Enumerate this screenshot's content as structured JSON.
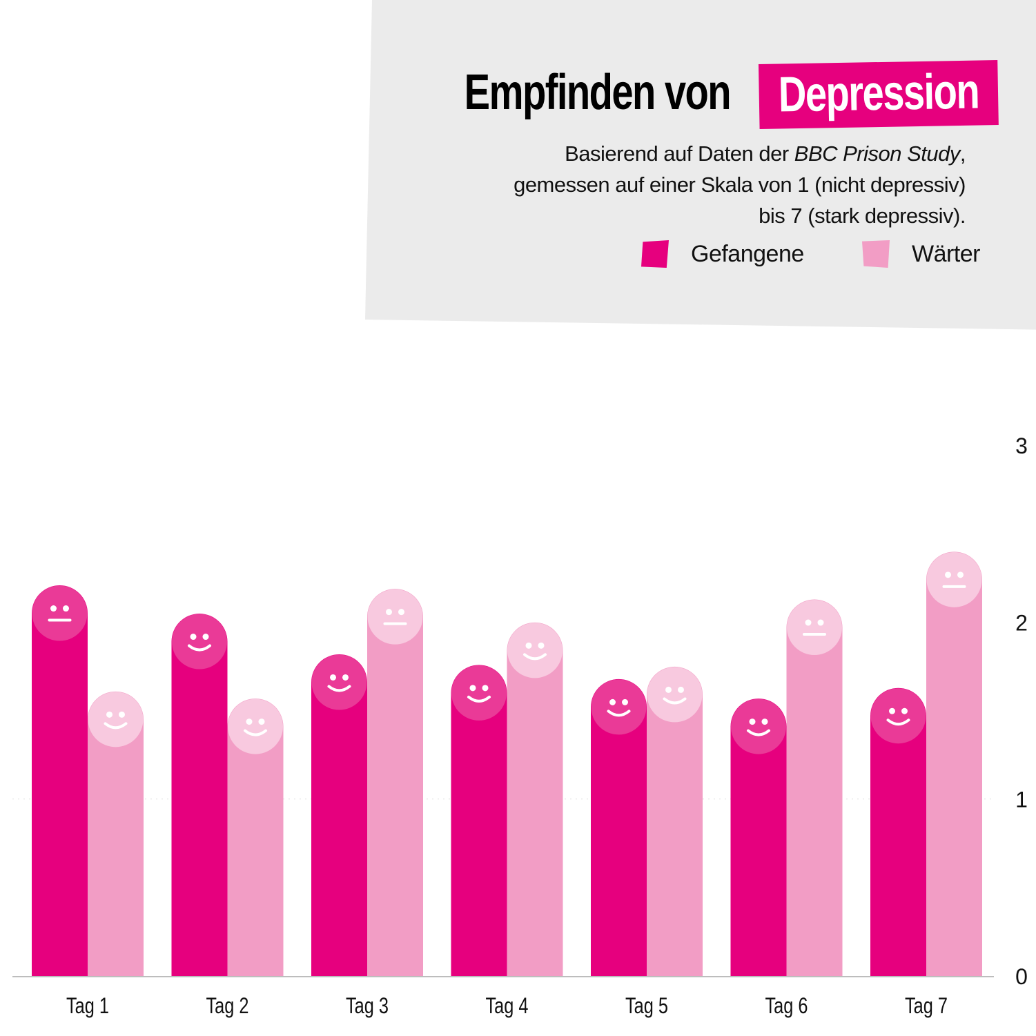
{
  "header": {
    "title_main": "Empfinden von",
    "title_highlight": "Depression",
    "subtitle_part1": "Basierend auf Daten der ",
    "subtitle_italic1": "BBC Prison Study",
    "subtitle_part2": ", gemessen auf einer Skala von 1 (nicht depressiv) bis 7 (stark depressiv)."
  },
  "legend": {
    "gefangene_label": "Gefangene",
    "waerter_label": "Wärter"
  },
  "colors": {
    "gefangene": "#e6007e",
    "gefangene_face": "#ea3a97",
    "waerter": "#f29dc5",
    "waerter_face": "#f8c9df",
    "card_bg": "#ebebeb"
  },
  "chart_data": {
    "type": "bar",
    "categories": [
      "Tag 1",
      "Tag 2",
      "Tag 3",
      "Tag 4",
      "Tag 5",
      "Tag 6",
      "Tag 7"
    ],
    "series": [
      {
        "name": "Gefangene",
        "values": [
          2.05,
          1.89,
          1.66,
          1.6,
          1.52,
          1.41,
          1.47
        ],
        "faces": [
          "neutral-icon",
          "smile-icon",
          "smile-icon",
          "smile-icon",
          "smile-icon",
          "smile-icon",
          "smile-icon"
        ]
      },
      {
        "name": "Wärter",
        "values": [
          1.45,
          1.41,
          2.03,
          1.84,
          1.59,
          1.97,
          2.24
        ],
        "faces": [
          "smile-icon",
          "smile-icon",
          "neutral-icon",
          "smile-icon",
          "smile-icon",
          "neutral-icon",
          "neutral-icon"
        ]
      }
    ],
    "y_ticks": [
      "0",
      "1",
      "2",
      "3"
    ],
    "ylim": [
      0,
      3
    ],
    "grid": "dotted line at 1",
    "legend_position": "top-right"
  }
}
